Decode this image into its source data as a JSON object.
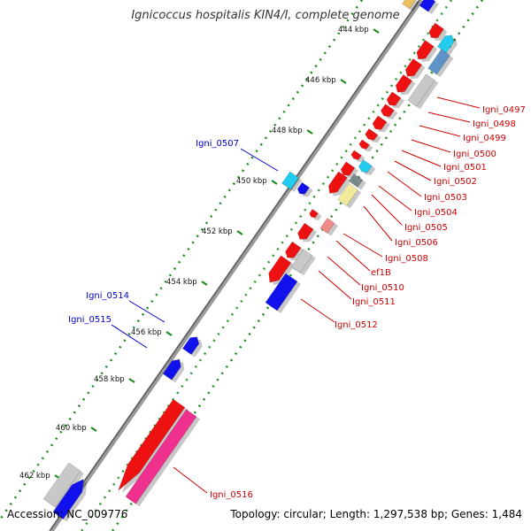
{
  "title": "Ignicoccus hospitalis KIN4/I, complete genome",
  "accession": "Accession: NC_009776",
  "summary": "Topology: circular; Length: 1,297,538 bp; Genes: 1,484",
  "ruler_labels": [
    "444 kbp",
    "446 kbp",
    "448 kbp",
    "450 kbp",
    "452 kbp",
    "454 kbp",
    "456 kbp",
    "458 kbp",
    "460 kbp",
    "462 kbp"
  ],
  "minus_strand_labels": [
    "Igni_0507",
    "Igni_0514",
    "Igni_0515"
  ],
  "plus_strand_labels": [
    "Igni_0497",
    "Igni_0498",
    "Igni_0499",
    "Igni_0500",
    "Igni_0501",
    "Igni_0502",
    "Igni_0503",
    "Igni_0504",
    "Igni_0505",
    "Igni_0506",
    "Igni_0508",
    "ef1B",
    "Igni_0510",
    "Igni_0511",
    "Igni_0512",
    "Igni_0516"
  ],
  "colors": {
    "backbone": "#7a7a7a",
    "ruler_dots": "#1a8a1a",
    "minus_label": "#0000cc",
    "plus_label": "#cc0000",
    "gene_red": "#ee1111",
    "gene_blue": "#1111ee",
    "gene_cyan": "#22ccee",
    "gene_grey": "#c8c8c8",
    "gene_steel": "#5f93c8",
    "gene_yellow": "#f0ea9a",
    "gene_pink": "#f0308f",
    "gene_salmon": "#f08a8a"
  }
}
